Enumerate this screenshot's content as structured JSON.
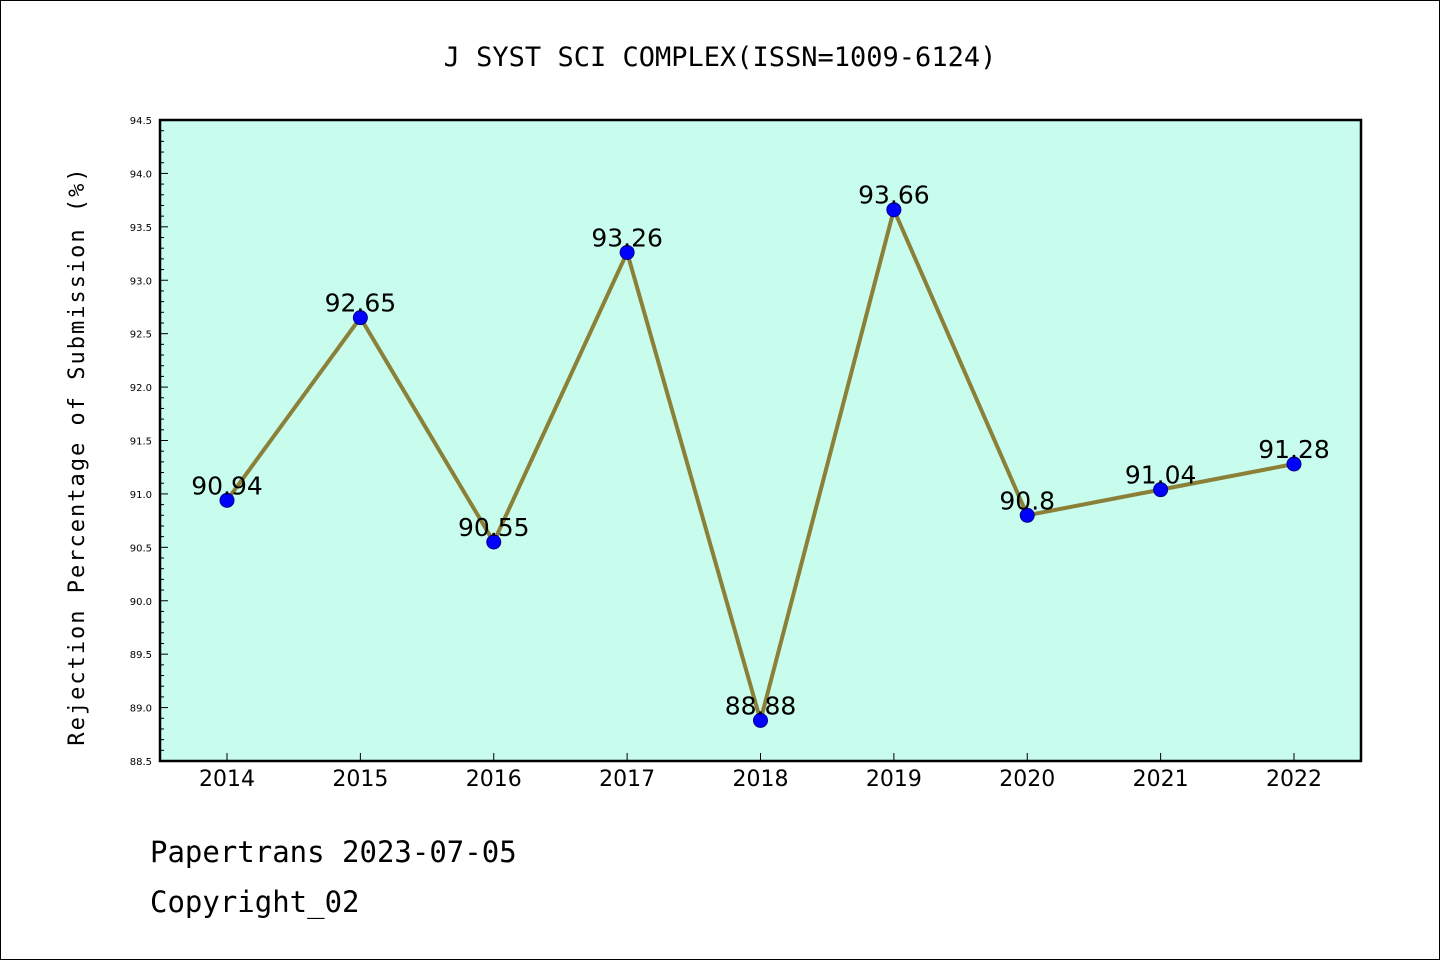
{
  "chart_data": {
    "type": "line",
    "title": "J SYST SCI COMPLEX(ISSN=1009-6124)",
    "xlabel": "",
    "ylabel": "Rejection Percentage of Submission (%)",
    "categories": [
      "2014",
      "2015",
      "2016",
      "2017",
      "2018",
      "2019",
      "2020",
      "2021",
      "2022"
    ],
    "series": [
      {
        "values": [
          90.94,
          92.65,
          90.55,
          93.26,
          88.88,
          93.66,
          90.8,
          91.04,
          91.28
        ],
        "labels": [
          "90.94",
          "92.65",
          "90.55",
          "93.26",
          "88.88",
          "93.66",
          "90.8",
          "91.04",
          "91.28"
        ]
      }
    ],
    "ylim": [
      88.5,
      94.5
    ],
    "yticks": [
      "88.5",
      "89.0",
      "89.5",
      "90.0",
      "90.5",
      "91.0",
      "91.5",
      "92.0",
      "92.5",
      "93.0",
      "93.5",
      "94.0",
      "94.5"
    ],
    "grid": false,
    "colors": {
      "plot_background": "#c8fcec",
      "line": "#8b8038",
      "marker": "#0000ff"
    }
  },
  "footer": {
    "line1": "Papertrans 2023-07-05",
    "line2": "Copyright_02"
  }
}
